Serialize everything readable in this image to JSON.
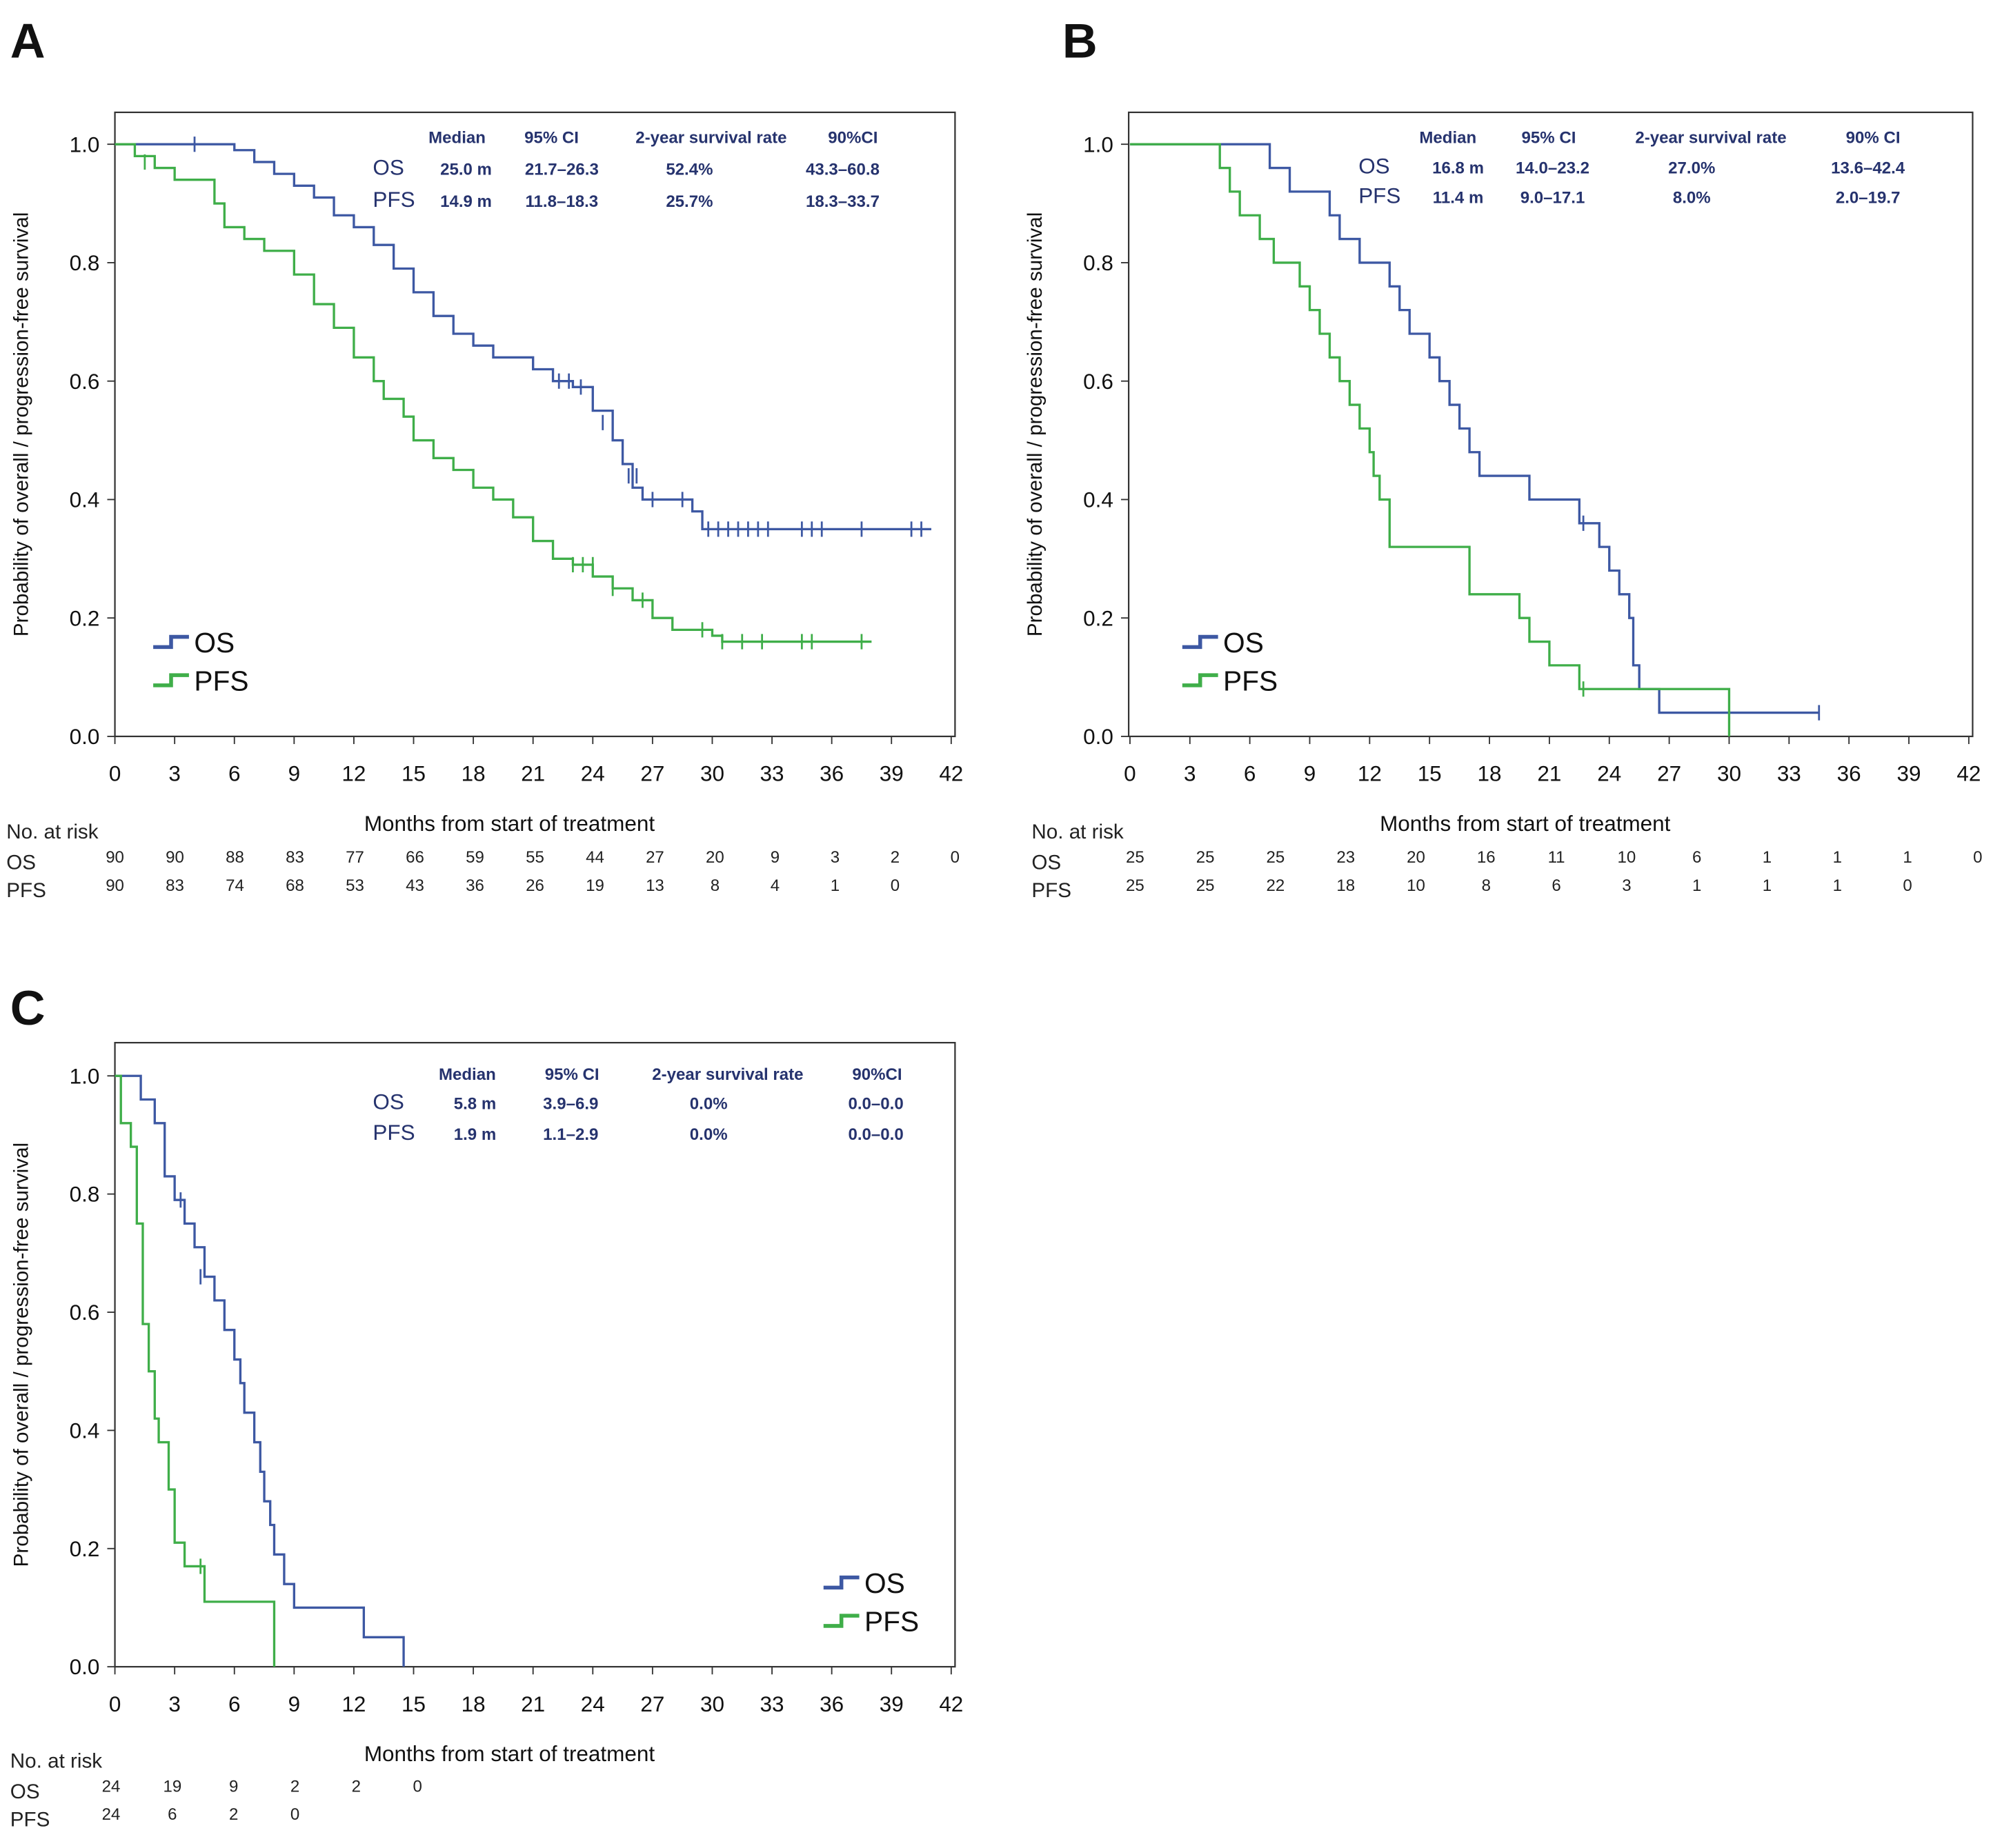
{
  "colors": {
    "OS": "#3d58a3",
    "PFS": "#3fae49",
    "table_text": "#26336e"
  },
  "chart_data": [
    {
      "type": "line",
      "panel_label": "A",
      "xlabel": "Months from start of treatment",
      "ylabel": "Probability of overall / progression-free survival",
      "xlim": [
        0,
        42
      ],
      "ylim": [
        0,
        1
      ],
      "xticks": [
        "0",
        "3",
        "6",
        "9",
        "12",
        "15",
        "18",
        "21",
        "24",
        "27",
        "30",
        "33",
        "36",
        "39",
        "42"
      ],
      "yticks": [
        "0.0",
        "0.2",
        "0.4",
        "0.6",
        "0.8",
        "1.0"
      ],
      "legend": {
        "entries": [
          "OS",
          "PFS"
        ],
        "placement": "bottom-left"
      },
      "table": {
        "headers": [
          "Median",
          "95% CI",
          "2-year  survival rate",
          "90%CI"
        ],
        "rows": [
          {
            "label": "OS",
            "median": "25.0 m",
            "ci95": "21.7–26.3",
            "rate": "52.4%",
            "ci90": "43.3–60.8"
          },
          {
            "label": "PFS",
            "median": "14.9 m",
            "ci95": "11.8–18.3",
            "rate": "25.7%",
            "ci90": "18.3–33.7"
          }
        ]
      },
      "at_risk": {
        "title": "No. at risk",
        "rows": [
          {
            "label": "OS",
            "values": [
              "90",
              "90",
              "88",
              "83",
              "77",
              "66",
              "59",
              "55",
              "44",
              "27",
              "20",
              "9",
              "3",
              "2",
              "0"
            ]
          },
          {
            "label": "PFS",
            "values": [
              "90",
              "83",
              "74",
              "68",
              "53",
              "43",
              "36",
              "26",
              "19",
              "13",
              "8",
              "4",
              "1",
              "0"
            ]
          }
        ]
      },
      "series": [
        {
          "name": "OS",
          "end": 41,
          "steps": [
            [
              0,
              1
            ],
            [
              6,
              0.99
            ],
            [
              7,
              0.97
            ],
            [
              8,
              0.95
            ],
            [
              9,
              0.93
            ],
            [
              10,
              0.91
            ],
            [
              11,
              0.88
            ],
            [
              12,
              0.86
            ],
            [
              13,
              0.83
            ],
            [
              14,
              0.79
            ],
            [
              15,
              0.75
            ],
            [
              16,
              0.71
            ],
            [
              17,
              0.68
            ],
            [
              18,
              0.66
            ],
            [
              19,
              0.64
            ],
            [
              21,
              0.62
            ],
            [
              22,
              0.6
            ],
            [
              23,
              0.59
            ],
            [
              24,
              0.55
            ],
            [
              25,
              0.5
            ],
            [
              25.5,
              0.46
            ],
            [
              26,
              0.42
            ],
            [
              26.5,
              0.4
            ],
            [
              29,
              0.38
            ],
            [
              29.5,
              0.35
            ]
          ],
          "censored": [
            [
              4,
              1
            ],
            [
              22.3,
              0.6
            ],
            [
              22.8,
              0.6
            ],
            [
              23.4,
              0.59
            ],
            [
              24.5,
              0.53
            ],
            [
              25,
              0.53
            ],
            [
              25.8,
              0.44
            ],
            [
              26.2,
              0.44
            ],
            [
              27,
              0.4
            ],
            [
              28.5,
              0.4
            ],
            [
              29.8,
              0.35
            ],
            [
              30.3,
              0.35
            ],
            [
              30.8,
              0.35
            ],
            [
              31.3,
              0.35
            ],
            [
              31.8,
              0.35
            ],
            [
              32.3,
              0.35
            ],
            [
              32.8,
              0.35
            ],
            [
              34.5,
              0.35
            ],
            [
              35,
              0.35
            ],
            [
              35.5,
              0.35
            ],
            [
              37.5,
              0.35
            ],
            [
              40,
              0.35
            ],
            [
              40.5,
              0.35
            ]
          ]
        },
        {
          "name": "PFS",
          "end": 38,
          "steps": [
            [
              0,
              1
            ],
            [
              1,
              0.98
            ],
            [
              2,
              0.96
            ],
            [
              3,
              0.94
            ],
            [
              5,
              0.9
            ],
            [
              5.5,
              0.86
            ],
            [
              6.5,
              0.84
            ],
            [
              7.5,
              0.82
            ],
            [
              9,
              0.78
            ],
            [
              10,
              0.73
            ],
            [
              11,
              0.69
            ],
            [
              12,
              0.64
            ],
            [
              13,
              0.6
            ],
            [
              13.5,
              0.57
            ],
            [
              14.5,
              0.54
            ],
            [
              15,
              0.5
            ],
            [
              16,
              0.47
            ],
            [
              17,
              0.45
            ],
            [
              18,
              0.42
            ],
            [
              19,
              0.4
            ],
            [
              20,
              0.37
            ],
            [
              21,
              0.33
            ],
            [
              22,
              0.3
            ],
            [
              23,
              0.29
            ],
            [
              24,
              0.27
            ],
            [
              25,
              0.25
            ],
            [
              26,
              0.23
            ],
            [
              27,
              0.2
            ],
            [
              28,
              0.18
            ],
            [
              30,
              0.17
            ],
            [
              30.5,
              0.16
            ]
          ],
          "censored": [
            [
              1.5,
              0.97
            ],
            [
              23,
              0.29
            ],
            [
              23.5,
              0.29
            ],
            [
              24,
              0.29
            ],
            [
              25,
              0.25
            ],
            [
              26.5,
              0.23
            ],
            [
              29.5,
              0.18
            ],
            [
              30.5,
              0.16
            ],
            [
              31.5,
              0.16
            ],
            [
              32.5,
              0.16
            ],
            [
              34.5,
              0.16
            ],
            [
              35,
              0.16
            ],
            [
              37.5,
              0.16
            ]
          ]
        }
      ]
    },
    {
      "type": "line",
      "panel_label": "B",
      "xlabel": "Months from start of treatment",
      "ylabel": "Probability of overall / progression-free survival",
      "xlim": [
        0,
        42
      ],
      "ylim": [
        0,
        1
      ],
      "xticks": [
        "0",
        "3",
        "6",
        "9",
        "12",
        "15",
        "18",
        "21",
        "24",
        "27",
        "30",
        "33",
        "36",
        "39",
        "42"
      ],
      "yticks": [
        "0.0",
        "0.2",
        "0.4",
        "0.6",
        "0.8",
        "1.0"
      ],
      "legend": {
        "entries": [
          "OS",
          "PFS"
        ],
        "placement": "bottom-left"
      },
      "table": {
        "headers": [
          "Median",
          "95% CI",
          "2-year  survival rate",
          "90% CI"
        ],
        "rows": [
          {
            "label": "OS",
            "median": "16.8 m",
            "ci95": "14.0–23.2",
            "rate": "27.0%",
            "ci90": "13.6–42.4"
          },
          {
            "label": "PFS",
            "median": "11.4 m",
            "ci95": "9.0–17.1",
            "rate": "8.0%",
            "ci90": "2.0–19.7"
          }
        ]
      },
      "at_risk": {
        "title": "No. at risk",
        "rows": [
          {
            "label": "OS",
            "values": [
              "25",
              "25",
              "25",
              "23",
              "20",
              "16",
              "11",
              "10",
              "6",
              "1",
              "1",
              "1",
              "0"
            ]
          },
          {
            "label": "PFS",
            "values": [
              "25",
              "25",
              "22",
              "18",
              "10",
              "8",
              "6",
              "3",
              "1",
              "1",
              "1",
              "0"
            ]
          }
        ]
      },
      "series": [
        {
          "name": "OS",
          "end": 34.5,
          "steps": [
            [
              0,
              1
            ],
            [
              7,
              0.96
            ],
            [
              8,
              0.92
            ],
            [
              10,
              0.88
            ],
            [
              10.5,
              0.84
            ],
            [
              11.5,
              0.8
            ],
            [
              13,
              0.76
            ],
            [
              13.5,
              0.72
            ],
            [
              14,
              0.68
            ],
            [
              15,
              0.64
            ],
            [
              15.5,
              0.6
            ],
            [
              16,
              0.56
            ],
            [
              16.5,
              0.52
            ],
            [
              17,
              0.48
            ],
            [
              17.5,
              0.44
            ],
            [
              20,
              0.4
            ],
            [
              22.5,
              0.36
            ],
            [
              23.5,
              0.32
            ],
            [
              24,
              0.28
            ],
            [
              24.5,
              0.24
            ],
            [
              25,
              0.2
            ],
            [
              25.2,
              0.12
            ],
            [
              25.5,
              0.08
            ],
            [
              26.5,
              0.04
            ]
          ],
          "censored": [
            [
              22.7,
              0.36
            ],
            [
              34.5,
              0.04
            ]
          ]
        },
        {
          "name": "PFS",
          "end": 30,
          "steps": [
            [
              0,
              1
            ],
            [
              4.5,
              0.96
            ],
            [
              5,
              0.92
            ],
            [
              5.5,
              0.88
            ],
            [
              6.5,
              0.84
            ],
            [
              7.2,
              0.8
            ],
            [
              8.5,
              0.76
            ],
            [
              9,
              0.72
            ],
            [
              9.5,
              0.68
            ],
            [
              10,
              0.64
            ],
            [
              10.5,
              0.6
            ],
            [
              11,
              0.56
            ],
            [
              11.5,
              0.52
            ],
            [
              12,
              0.48
            ],
            [
              12.2,
              0.44
            ],
            [
              12.5,
              0.4
            ],
            [
              13,
              0.32
            ],
            [
              17,
              0.24
            ],
            [
              19.5,
              0.2
            ],
            [
              20,
              0.16
            ],
            [
              21,
              0.12
            ],
            [
              22.5,
              0.08
            ],
            [
              30,
              0
            ]
          ],
          "censored": [
            [
              22.7,
              0.08
            ]
          ]
        }
      ]
    },
    {
      "type": "line",
      "panel_label": "C",
      "xlabel": "Months from start of treatment",
      "ylabel": "Probability of overall / progression-free survival",
      "xlim": [
        0,
        42
      ],
      "ylim": [
        0,
        1
      ],
      "xticks": [
        "0",
        "3",
        "6",
        "9",
        "12",
        "15",
        "18",
        "21",
        "24",
        "27",
        "30",
        "33",
        "36",
        "39",
        "42"
      ],
      "yticks": [
        "0.0",
        "0.2",
        "0.4",
        "0.6",
        "0.8",
        "1.0"
      ],
      "legend": {
        "entries": [
          "OS",
          "PFS"
        ],
        "placement": "bottom-right"
      },
      "table": {
        "headers": [
          "Median",
          "95% CI",
          "2-year  survival rate",
          "90%CI"
        ],
        "rows": [
          {
            "label": "OS",
            "median": "5.8 m",
            "ci95": "3.9–6.9",
            "rate": "0.0%",
            "ci90": "0.0–0.0"
          },
          {
            "label": "PFS",
            "median": "1.9 m",
            "ci95": "1.1–2.9",
            "rate": "0.0%",
            "ci90": "0.0–0.0"
          }
        ]
      },
      "at_risk": {
        "title": "No. at risk",
        "rows": [
          {
            "label": "OS",
            "values": [
              "24",
              "19",
              "9",
              "2",
              "2",
              "0"
            ]
          },
          {
            "label": "PFS",
            "values": [
              "24",
              "6",
              "2",
              "0"
            ]
          }
        ]
      },
      "series": [
        {
          "name": "OS",
          "end": 14.5,
          "steps": [
            [
              0,
              1
            ],
            [
              1.3,
              0.96
            ],
            [
              2,
              0.92
            ],
            [
              2.5,
              0.83
            ],
            [
              3,
              0.79
            ],
            [
              3.5,
              0.75
            ],
            [
              4,
              0.71
            ],
            [
              4.5,
              0.66
            ],
            [
              5,
              0.62
            ],
            [
              5.5,
              0.57
            ],
            [
              6,
              0.52
            ],
            [
              6.3,
              0.48
            ],
            [
              6.5,
              0.43
            ],
            [
              7,
              0.38
            ],
            [
              7.3,
              0.33
            ],
            [
              7.5,
              0.28
            ],
            [
              7.8,
              0.24
            ],
            [
              8,
              0.19
            ],
            [
              8.5,
              0.14
            ],
            [
              9,
              0.1
            ],
            [
              12.5,
              0.05
            ],
            [
              14.5,
              0
            ]
          ],
          "censored": [
            [
              3.3,
              0.79
            ],
            [
              4.3,
              0.66
            ]
          ]
        },
        {
          "name": "PFS",
          "end": 8,
          "steps": [
            [
              0,
              1
            ],
            [
              0.3,
              0.92
            ],
            [
              0.8,
              0.88
            ],
            [
              1.1,
              0.75
            ],
            [
              1.4,
              0.58
            ],
            [
              1.7,
              0.5
            ],
            [
              2,
              0.42
            ],
            [
              2.2,
              0.38
            ],
            [
              2.7,
              0.3
            ],
            [
              3,
              0.21
            ],
            [
              3.5,
              0.17
            ],
            [
              4.5,
              0.11
            ],
            [
              8,
              0
            ]
          ],
          "censored": [
            [
              4.3,
              0.17
            ]
          ]
        }
      ]
    }
  ]
}
